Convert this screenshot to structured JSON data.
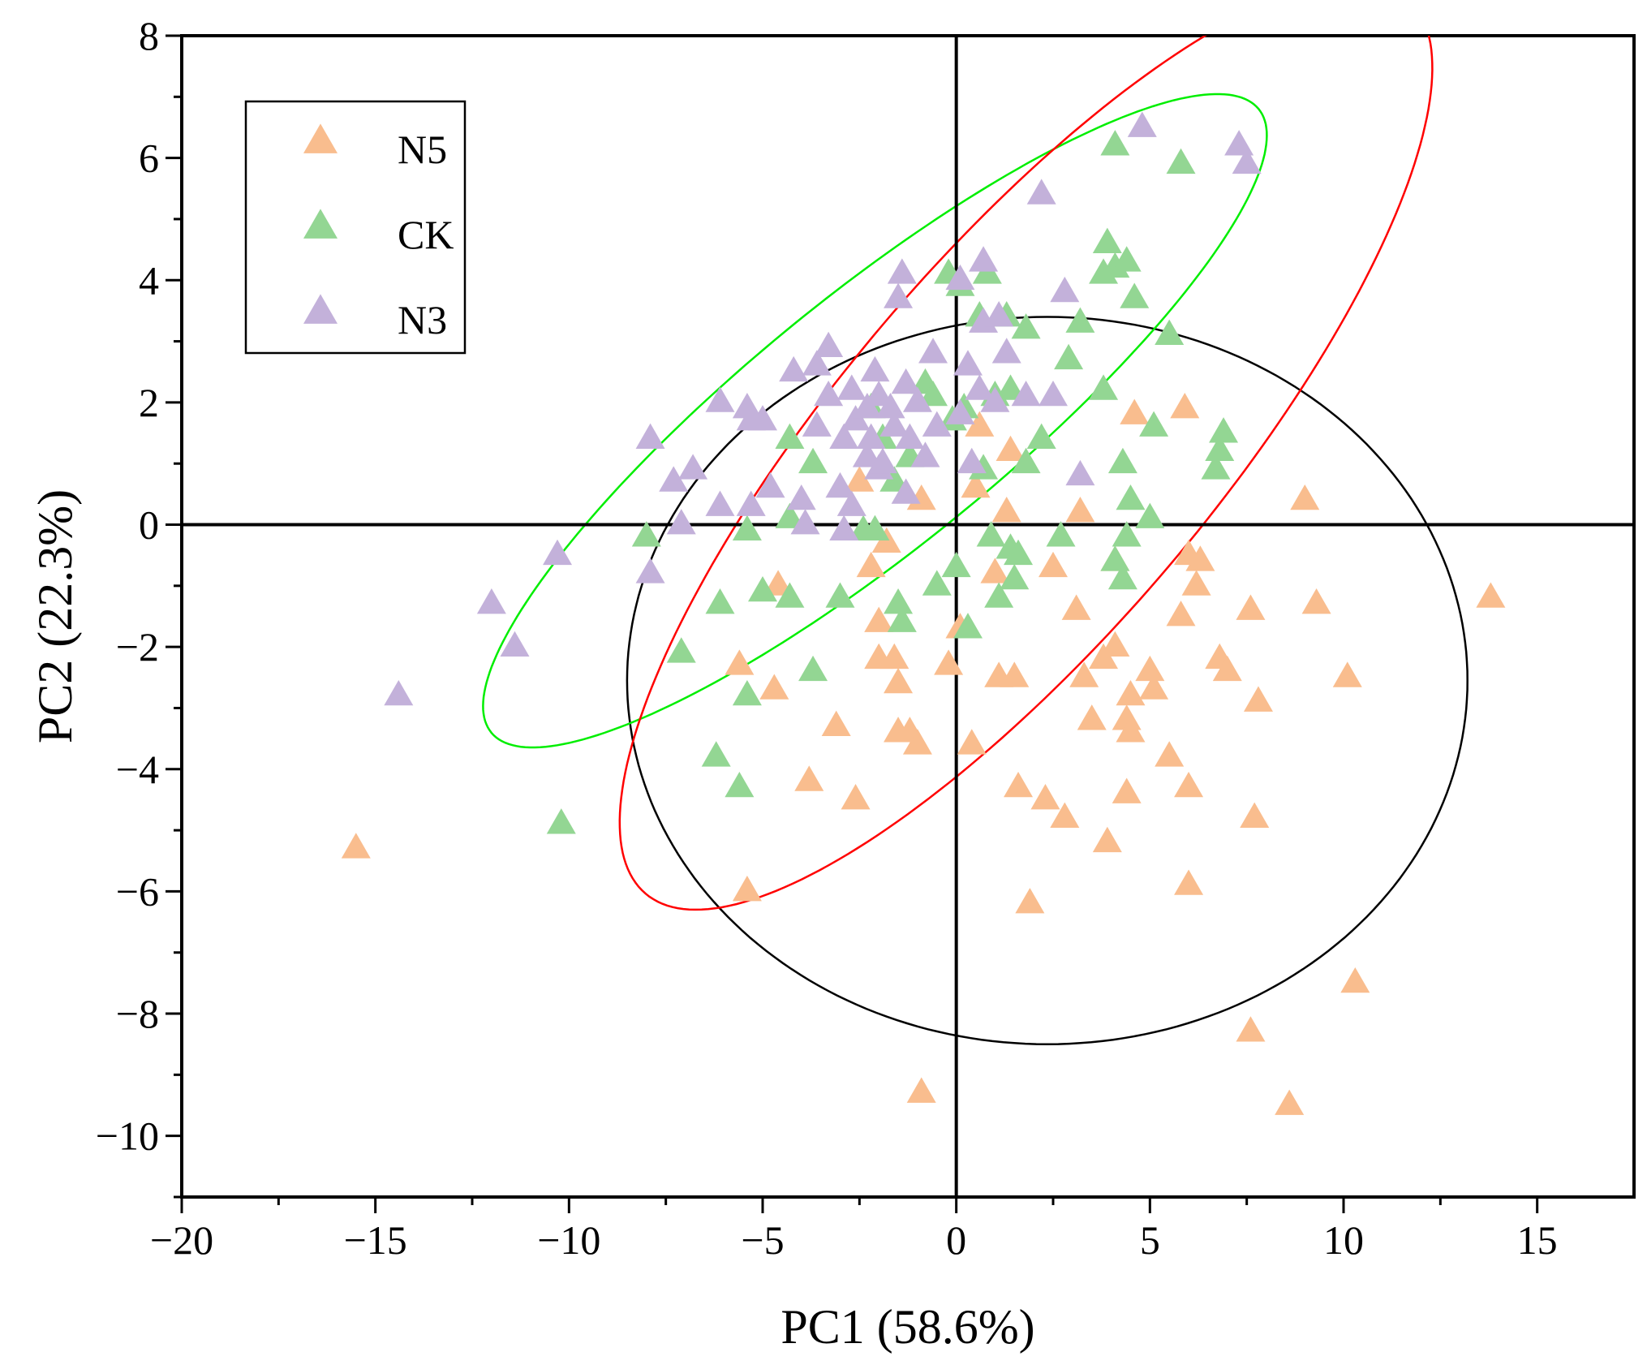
{
  "chart_data": {
    "type": "scatter",
    "title": "",
    "xlabel": "PC1 (58.6%)",
    "ylabel": "PC2 (22.3%)",
    "xlim": [
      -20,
      17.5
    ],
    "ylim": [
      -11,
      8
    ],
    "xticks": [
      -20,
      -15,
      -10,
      -5,
      0,
      5,
      10,
      15
    ],
    "yticks": [
      -10,
      -8,
      -6,
      -4,
      -2,
      0,
      2,
      4,
      6,
      8
    ],
    "xtick_labels": [
      "−20",
      "−15",
      "−10",
      "−5",
      "0",
      "5",
      "10",
      "15"
    ],
    "ytick_labels": [
      "−10",
      "−8",
      "−6",
      "−4",
      "−2",
      "0",
      "2",
      "4",
      "6",
      "8"
    ],
    "grid": false,
    "zero_lines": true,
    "marker": "triangle",
    "legend": {
      "position": "top-left",
      "entries": [
        "N5",
        "CK",
        "N3"
      ]
    },
    "series": [
      {
        "name": "N5",
        "color": "#F9BD8E",
        "points": [
          [
            -15.5,
            -5.3
          ],
          [
            -5.4,
            -6.0
          ],
          [
            -4.7,
            -2.7
          ],
          [
            -5.6,
            -2.3
          ],
          [
            -4.6,
            -1.0
          ],
          [
            -3.8,
            -4.2
          ],
          [
            -3.1,
            -3.3
          ],
          [
            -2.6,
            -4.5
          ],
          [
            -2.5,
            0.7
          ],
          [
            -2.2,
            -0.7
          ],
          [
            -2.0,
            -2.2
          ],
          [
            -2.0,
            -1.6
          ],
          [
            -1.8,
            -0.3
          ],
          [
            -1.6,
            -2.2
          ],
          [
            -1.5,
            -2.6
          ],
          [
            -1.5,
            -3.4
          ],
          [
            -1.2,
            -3.4
          ],
          [
            -1.0,
            -3.6
          ],
          [
            -0.9,
            0.4
          ],
          [
            -0.2,
            -2.3
          ],
          [
            0.1,
            -1.7
          ],
          [
            0.4,
            -3.6
          ],
          [
            0.5,
            0.6
          ],
          [
            0.6,
            1.6
          ],
          [
            1.0,
            -0.8
          ],
          [
            1.1,
            -2.5
          ],
          [
            1.3,
            0.2
          ],
          [
            1.4,
            1.2
          ],
          [
            1.5,
            -2.5
          ],
          [
            1.6,
            -4.3
          ],
          [
            1.9,
            -6.2
          ],
          [
            2.3,
            -4.5
          ],
          [
            2.5,
            -0.7
          ],
          [
            2.8,
            -4.8
          ],
          [
            3.1,
            -1.4
          ],
          [
            3.2,
            0.2
          ],
          [
            3.3,
            -2.5
          ],
          [
            3.5,
            -3.2
          ],
          [
            3.8,
            -2.2
          ],
          [
            3.9,
            -5.2
          ],
          [
            4.1,
            -0.6
          ],
          [
            4.1,
            -2.0
          ],
          [
            4.4,
            -3.2
          ],
          [
            4.4,
            -4.4
          ],
          [
            4.5,
            -2.8
          ],
          [
            4.5,
            -3.4
          ],
          [
            4.6,
            1.8
          ],
          [
            5.0,
            -2.4
          ],
          [
            5.1,
            -2.7
          ],
          [
            5.5,
            -3.8
          ],
          [
            5.8,
            -1.5
          ],
          [
            5.9,
            1.9
          ],
          [
            6.0,
            -0.5
          ],
          [
            6.0,
            -4.3
          ],
          [
            6.0,
            -5.9
          ],
          [
            6.2,
            -1.0
          ],
          [
            6.3,
            -0.6
          ],
          [
            6.8,
            -2.2
          ],
          [
            7.0,
            -2.4
          ],
          [
            7.6,
            -1.4
          ],
          [
            7.6,
            -8.3
          ],
          [
            7.7,
            -4.8
          ],
          [
            7.8,
            -2.9
          ],
          [
            8.6,
            -9.5
          ],
          [
            9.0,
            0.4
          ],
          [
            9.3,
            -1.3
          ],
          [
            10.1,
            -2.5
          ],
          [
            10.3,
            -7.5
          ],
          [
            13.8,
            -1.2
          ],
          [
            -0.9,
            -9.3
          ]
        ]
      },
      {
        "name": "CK",
        "color": "#93D693",
        "points": [
          [
            -10.2,
            -4.9
          ],
          [
            -8.0,
            -0.2
          ],
          [
            -7.1,
            -2.1
          ],
          [
            -6.1,
            -1.3
          ],
          [
            -6.2,
            -3.8
          ],
          [
            -5.6,
            -4.3
          ],
          [
            -5.4,
            -2.8
          ],
          [
            -5.4,
            -0.1
          ],
          [
            -5.0,
            -1.1
          ],
          [
            -4.3,
            1.4
          ],
          [
            -4.3,
            0.1
          ],
          [
            -4.3,
            -1.2
          ],
          [
            -3.7,
            -2.4
          ],
          [
            -3.7,
            1.0
          ],
          [
            -3.0,
            -1.2
          ],
          [
            -2.4,
            -0.1
          ],
          [
            -2.2,
            1.9
          ],
          [
            -2.1,
            -0.1
          ],
          [
            -1.9,
            1.4
          ],
          [
            -1.6,
            0.7
          ],
          [
            -1.5,
            -1.3
          ],
          [
            -1.4,
            -1.6
          ],
          [
            -1.2,
            1.1
          ],
          [
            -0.8,
            2.3
          ],
          [
            -0.6,
            2.1
          ],
          [
            -0.5,
            -1.0
          ],
          [
            -0.2,
            4.1
          ],
          [
            -0.1,
            1.7
          ],
          [
            0.0,
            -0.7
          ],
          [
            0.1,
            3.9
          ],
          [
            0.2,
            1.9
          ],
          [
            0.3,
            -1.7
          ],
          [
            0.6,
            3.4
          ],
          [
            0.7,
            0.9
          ],
          [
            0.8,
            4.1
          ],
          [
            0.9,
            -0.2
          ],
          [
            1.0,
            2.1
          ],
          [
            1.1,
            -1.2
          ],
          [
            1.3,
            3.4
          ],
          [
            1.4,
            2.2
          ],
          [
            1.4,
            -0.4
          ],
          [
            1.5,
            -0.9
          ],
          [
            1.6,
            -0.5
          ],
          [
            1.8,
            1.0
          ],
          [
            1.8,
            3.2
          ],
          [
            2.2,
            1.4
          ],
          [
            2.7,
            -0.2
          ],
          [
            2.9,
            2.7
          ],
          [
            3.2,
            3.3
          ],
          [
            3.8,
            2.2
          ],
          [
            3.8,
            4.1
          ],
          [
            3.9,
            4.6
          ],
          [
            4.1,
            6.2
          ],
          [
            4.1,
            4.2
          ],
          [
            4.1,
            -0.6
          ],
          [
            4.3,
            -0.9
          ],
          [
            4.3,
            1.0
          ],
          [
            4.4,
            -0.2
          ],
          [
            4.4,
            4.3
          ],
          [
            4.5,
            0.4
          ],
          [
            4.6,
            3.7
          ],
          [
            5.0,
            0.1
          ],
          [
            5.1,
            1.6
          ],
          [
            5.5,
            3.1
          ],
          [
            5.8,
            5.9
          ],
          [
            6.7,
            0.9
          ],
          [
            6.8,
            1.2
          ],
          [
            6.9,
            1.5
          ]
        ]
      },
      {
        "name": "N3",
        "color": "#C3B1DA",
        "points": [
          [
            -14.4,
            -2.8
          ],
          [
            -12.0,
            -1.3
          ],
          [
            -11.4,
            -2.0
          ],
          [
            -10.3,
            -0.5
          ],
          [
            -7.9,
            1.4
          ],
          [
            -7.9,
            -0.8
          ],
          [
            -7.3,
            0.7
          ],
          [
            -7.1,
            0.0
          ],
          [
            -6.8,
            0.9
          ],
          [
            -6.1,
            0.3
          ],
          [
            -6.1,
            2.0
          ],
          [
            -5.4,
            1.9
          ],
          [
            -5.3,
            0.3
          ],
          [
            -5.3,
            1.7
          ],
          [
            -5.0,
            1.7
          ],
          [
            -4.8,
            0.6
          ],
          [
            -4.2,
            2.5
          ],
          [
            -4.0,
            0.4
          ],
          [
            -3.9,
            0.0
          ],
          [
            -3.6,
            1.6
          ],
          [
            -3.6,
            2.6
          ],
          [
            -3.3,
            2.9
          ],
          [
            -3.3,
            2.1
          ],
          [
            -3.0,
            0.6
          ],
          [
            -2.9,
            1.4
          ],
          [
            -2.9,
            -0.1
          ],
          [
            -2.7,
            0.3
          ],
          [
            -2.7,
            2.2
          ],
          [
            -2.6,
            1.7
          ],
          [
            -2.3,
            1.1
          ],
          [
            -2.3,
            1.9
          ],
          [
            -2.2,
            1.4
          ],
          [
            -2.1,
            2.5
          ],
          [
            -2.0,
            2.1
          ],
          [
            -2.0,
            0.9
          ],
          [
            -1.9,
            1.0
          ],
          [
            -1.7,
            1.9
          ],
          [
            -1.6,
            1.6
          ],
          [
            -1.5,
            3.7
          ],
          [
            -1.4,
            4.1
          ],
          [
            -1.3,
            0.5
          ],
          [
            -1.3,
            2.3
          ],
          [
            -1.2,
            1.4
          ],
          [
            -1.0,
            2.0
          ],
          [
            -0.8,
            1.1
          ],
          [
            -0.6,
            2.8
          ],
          [
            -0.5,
            1.6
          ],
          [
            0.1,
            1.8
          ],
          [
            0.1,
            4.0
          ],
          [
            0.3,
            2.6
          ],
          [
            0.4,
            1.0
          ],
          [
            0.6,
            2.2
          ],
          [
            0.7,
            3.3
          ],
          [
            0.7,
            4.3
          ],
          [
            1.0,
            2.0
          ],
          [
            1.1,
            3.4
          ],
          [
            1.3,
            2.8
          ],
          [
            1.8,
            2.1
          ],
          [
            2.2,
            5.4
          ],
          [
            2.5,
            2.1
          ],
          [
            2.8,
            3.8
          ],
          [
            3.2,
            0.8
          ],
          [
            4.8,
            6.5
          ],
          [
            7.3,
            6.2
          ],
          [
            7.5,
            5.9
          ]
        ]
      }
    ],
    "ellipses": [
      {
        "group": "N5",
        "color": "#000000",
        "center": [
          2.35,
          -2.55
        ],
        "rx": 10.85,
        "ry": 5.95,
        "angle": 0
      },
      {
        "group": "CK",
        "color": "#00EE00",
        "center": [
          -2.1,
          1.7
        ],
        "rx": 11.2,
        "ry": 2.35,
        "angle": 26
      },
      {
        "group": "N3",
        "color": "#FF0000",
        "center": [
          1.8,
          1.3
        ],
        "rx": 12.4,
        "ry": 3.75,
        "angle": 34
      }
    ]
  }
}
